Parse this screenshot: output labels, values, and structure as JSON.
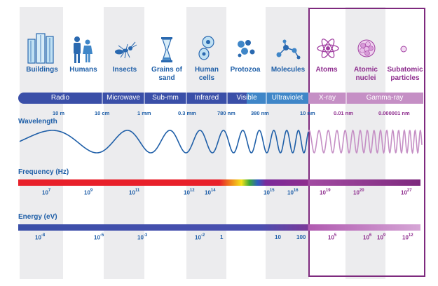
{
  "objects": [
    {
      "label": "Buildings",
      "icon": "buildings-icon"
    },
    {
      "label": "Humans",
      "icon": "humans-icon"
    },
    {
      "label": "Insects",
      "icon": "insect-icon"
    },
    {
      "label": "Grains of sand",
      "icon": "hourglass-icon"
    },
    {
      "label": "Human cells",
      "icon": "cells-icon"
    },
    {
      "label": "Protozoa",
      "icon": "protozoa-icon"
    },
    {
      "label": "Molecules",
      "icon": "molecule-icon"
    },
    {
      "label": "Atoms",
      "icon": "atom-icon"
    },
    {
      "label": "Atomic nuclei",
      "icon": "nucleus-icon"
    },
    {
      "label": "Subatomic particles",
      "icon": "particle-icon"
    }
  ],
  "bands": [
    "Radio",
    "Microwave",
    "Sub-mm",
    "Infrared",
    "Visible",
    "Ultraviolet",
    "X-ray",
    "Gamma-ray"
  ],
  "wavelength": {
    "title": "Wavelength",
    "ticks": [
      "10 m",
      "10 cm",
      "1 mm",
      "0.3 mm",
      "780 nm",
      "380 nm",
      "10 nm",
      "0.01 nm",
      "0.000001 nm"
    ]
  },
  "frequency": {
    "title": "Frequency (Hz)",
    "ticks": [
      {
        "base": "10",
        "exp": "7"
      },
      {
        "base": "10",
        "exp": "9"
      },
      {
        "base": "10",
        "exp": "11"
      },
      {
        "base": "10",
        "exp": "12"
      },
      {
        "base": "10",
        "exp": "14"
      },
      {
        "base": "10",
        "exp": "15"
      },
      {
        "base": "10",
        "exp": "16"
      },
      {
        "base": "10",
        "exp": "19"
      },
      {
        "base": "10",
        "exp": "20"
      },
      {
        "base": "10",
        "exp": "27"
      }
    ]
  },
  "energy": {
    "title": "Energy (eV)",
    "ticks": [
      {
        "base": "10",
        "exp": "-8"
      },
      {
        "base": "10",
        "exp": "-5"
      },
      {
        "base": "10",
        "exp": "-3"
      },
      {
        "base": "10",
        "exp": "-2"
      },
      {
        "base": "1",
        "exp": ""
      },
      {
        "base": "10",
        "exp": ""
      },
      {
        "base": "100",
        "exp": ""
      },
      {
        "base": "10",
        "exp": "5"
      },
      {
        "base": "10",
        "exp": "6"
      },
      {
        "base": "10",
        "exp": "9"
      },
      {
        "base": "10",
        "exp": "12"
      }
    ]
  },
  "colors": {
    "blue": "#1f5fa8",
    "band_blue": "#3a4fa8",
    "purple": "#8e2d8e",
    "pink": "#c58fc5"
  }
}
